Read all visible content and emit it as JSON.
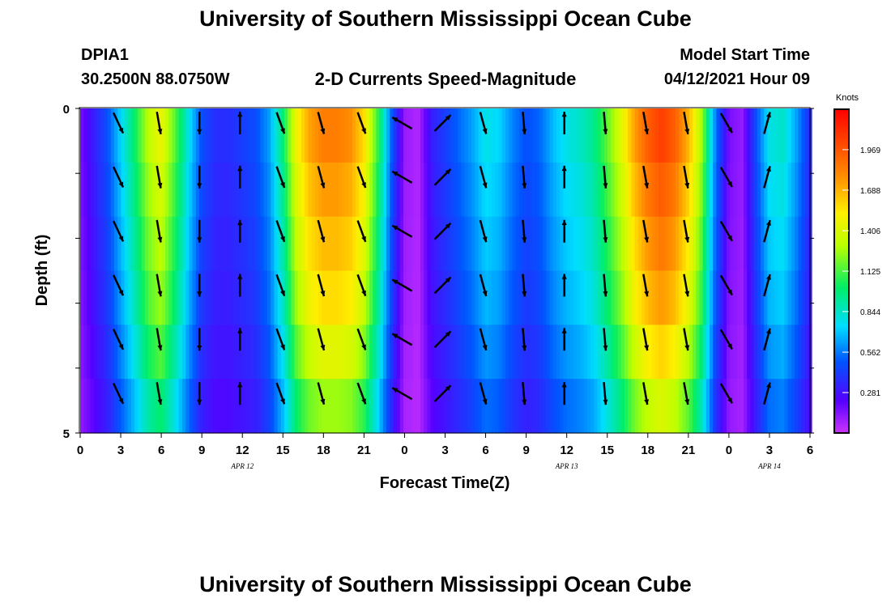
{
  "header": {
    "title": "University of Southern Mississippi Ocean Cube",
    "station": "DPIA1",
    "coords": "30.2500N  88.0750W",
    "subtitle": "2-D Currents Speed-Magnitude",
    "model_start_label": "Model Start Time",
    "model_start_value": "04/12/2021 Hour 09"
  },
  "footer": {
    "title": "University of Southern Mississippi Ocean Cube"
  },
  "chart_data": {
    "type": "heatmap",
    "xlabel": "Forecast Time(Z)",
    "ylabel": "Depth (ft)",
    "colorbar_label": "Knots",
    "colorbar_ticks": [
      "1.969",
      "1.688",
      "1.406",
      "1.125",
      "0.844",
      "0.562",
      "0.281"
    ],
    "colorbar_range": [
      0,
      2.25
    ],
    "x_hours_from_apr12_00z": [
      0,
      54
    ],
    "x_tick_labels": [
      "0",
      "3",
      "6",
      "9",
      "12",
      "15",
      "18",
      "21",
      "0",
      "3",
      "6",
      "9",
      "12",
      "15",
      "18",
      "21",
      "0",
      "3",
      "6"
    ],
    "date_labels": [
      {
        "text": "APR 12",
        "hour": 12
      },
      {
        "text": "APR 13",
        "hour": 36
      },
      {
        "text": "APR 14",
        "hour": 51
      }
    ],
    "y_ticks": [
      "0",
      "5"
    ],
    "ylim": [
      0,
      5
    ],
    "speed_profile": [
      [
        0,
        0.15
      ],
      [
        1,
        0.3
      ],
      [
        2,
        0.45
      ],
      [
        3,
        0.7
      ],
      [
        4,
        0.95
      ],
      [
        5,
        1.25
      ],
      [
        6,
        1.4
      ],
      [
        7,
        1.1
      ],
      [
        8,
        0.75
      ],
      [
        9,
        0.45
      ],
      [
        10,
        0.35
      ],
      [
        11,
        0.35
      ],
      [
        12,
        0.4
      ],
      [
        13,
        0.45
      ],
      [
        14,
        0.6
      ],
      [
        15,
        0.95
      ],
      [
        16,
        1.4
      ],
      [
        17,
        1.65
      ],
      [
        18,
        1.75
      ],
      [
        19,
        1.75
      ],
      [
        20,
        1.7
      ],
      [
        21,
        1.5
      ],
      [
        22,
        1.05
      ],
      [
        23,
        0.5
      ],
      [
        24,
        0.1
      ],
      [
        25,
        0.05
      ],
      [
        26,
        0.3
      ],
      [
        27,
        0.4
      ],
      [
        28,
        0.5
      ],
      [
        29,
        0.6
      ],
      [
        30,
        0.75
      ],
      [
        31,
        0.7
      ],
      [
        32,
        0.55
      ],
      [
        33,
        0.45
      ],
      [
        34,
        0.5
      ],
      [
        35,
        0.65
      ],
      [
        36,
        0.75
      ],
      [
        37,
        0.8
      ],
      [
        38,
        0.9
      ],
      [
        39,
        1.1
      ],
      [
        40,
        1.35
      ],
      [
        41,
        1.65
      ],
      [
        42,
        1.85
      ],
      [
        43,
        1.95
      ],
      [
        44,
        1.85
      ],
      [
        45,
        1.6
      ],
      [
        46,
        1.2
      ],
      [
        47,
        0.55
      ],
      [
        48,
        0.15
      ],
      [
        49,
        0.1
      ],
      [
        50,
        0.45
      ],
      [
        51,
        0.75
      ],
      [
        52,
        0.8
      ],
      [
        53,
        0.6
      ],
      [
        54,
        0.35
      ]
    ],
    "depth_factors": [
      1.05,
      1.0,
      0.95,
      0.9,
      0.82,
      0.72
    ],
    "arrow_hours": [
      3,
      6,
      9,
      12,
      15,
      18,
      21,
      24,
      27,
      30,
      33,
      36,
      39,
      42,
      45,
      48,
      51
    ],
    "arrow_directions_deg": [
      155,
      170,
      180,
      0,
      160,
      165,
      160,
      300,
      45,
      165,
      175,
      0,
      175,
      170,
      170,
      150,
      15
    ]
  }
}
